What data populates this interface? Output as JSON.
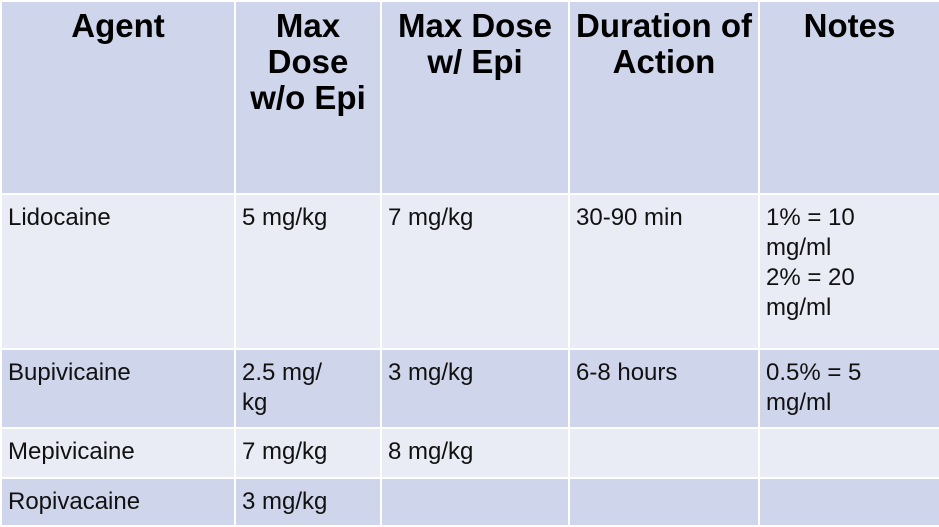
{
  "headers": [
    [
      "Agent"
    ],
    [
      "Max",
      "Dose",
      "w/o",
      "Epi"
    ],
    [
      "Max",
      "Dose w/",
      "Epi"
    ],
    [
      "Duration",
      "of Action"
    ],
    [
      "Notes"
    ]
  ],
  "rows": [
    {
      "agent": [
        "Lidocaine"
      ],
      "max_dose_without_epi": [
        "5 mg/kg"
      ],
      "max_dose_with_epi": [
        "7 mg/kg"
      ],
      "duration": [
        "30-90 min"
      ],
      "notes": [
        "1% = 10",
        "mg/ml",
        "2% = 20",
        "mg/ml"
      ]
    },
    {
      "agent": [
        "Bupivicaine"
      ],
      "max_dose_without_epi": [
        "2.5 mg/",
        "kg"
      ],
      "max_dose_with_epi": [
        "3 mg/kg"
      ],
      "duration": [
        "6-8 hours"
      ],
      "notes": [
        "0.5% = 5",
        "mg/ml"
      ]
    },
    {
      "agent": [
        "Mepivicaine"
      ],
      "max_dose_without_epi": [
        "7 mg/kg"
      ],
      "max_dose_with_epi": [
        "8 mg/kg"
      ],
      "duration": [
        ""
      ],
      "notes": [
        ""
      ]
    },
    {
      "agent": [
        "Ropivacaine"
      ],
      "max_dose_without_epi": [
        "3 mg/kg"
      ],
      "max_dose_with_epi": [
        ""
      ],
      "duration": [
        ""
      ],
      "notes": [
        ""
      ]
    }
  ]
}
